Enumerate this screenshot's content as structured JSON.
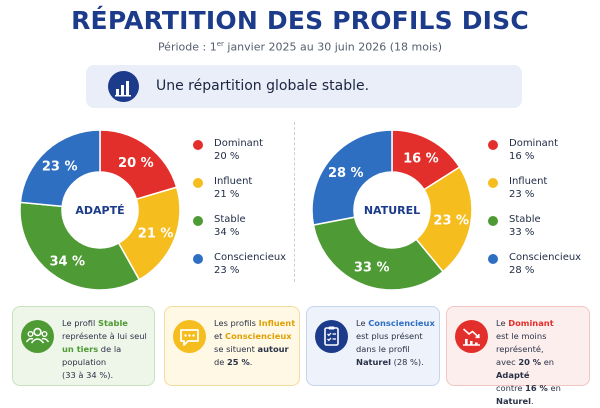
{
  "header": {
    "title": "RÉPARTITION DES PROFILS DISC",
    "subtitle_prefix": "Période : 1",
    "subtitle_sup": "er",
    "subtitle_suffix": " janvier 2025 au 30 juin 2026 (18 mois)"
  },
  "banner": {
    "icon": "bar-chart-icon",
    "text": "Une répartition globale stable."
  },
  "chart_data": [
    {
      "type": "pie",
      "center_label": "ADAPTÉ",
      "categories": [
        "Dominant",
        "Influent",
        "Stable",
        "Consciencieux"
      ],
      "values": [
        20,
        21,
        34,
        23
      ],
      "value_labels": [
        "20 %",
        "21 %",
        "34 %",
        "23 %"
      ],
      "colors": [
        "#e32f2b",
        "#f5bd1e",
        "#4e9a34",
        "#2f6fc2"
      ],
      "legend_placement": "right"
    },
    {
      "type": "pie",
      "center_label": "NATUREL",
      "categories": [
        "Dominant",
        "Influent",
        "Stable",
        "Consciencieux"
      ],
      "values": [
        16,
        23,
        33,
        28
      ],
      "value_labels": [
        "16 %",
        "23 %",
        "33 %",
        "28 %"
      ],
      "colors": [
        "#e32f2b",
        "#f5bd1e",
        "#4e9a34",
        "#2f6fc2"
      ],
      "legend_placement": "right"
    }
  ],
  "cards": [
    {
      "icon": "group-icon",
      "colors": {
        "bg": "#eef6ea",
        "border": "#c9e2bd",
        "icon_bg": "#4e9a34",
        "accent": "#4e9a34"
      },
      "parts": [
        "Le profil ",
        "Stable",
        "représente à lui seul",
        "un tiers",
        " de la population",
        "(33 à 34 %)."
      ]
    },
    {
      "icon": "chat-icon",
      "colors": {
        "bg": "#fff8e4",
        "border": "#f3dd9c",
        "icon_bg": "#f5bd1e",
        "accent": "#e0a106"
      },
      "parts": [
        "Les profils ",
        "Influent",
        "et ",
        "Consciencieux",
        "se situent ",
        "autour",
        "de ",
        "25 %",
        "."
      ]
    },
    {
      "icon": "clipboard-icon",
      "colors": {
        "bg": "#edf2fb",
        "border": "#c6d5ee",
        "icon_bg": "#1d3b8b",
        "accent": "#2f6fc2"
      },
      "parts": [
        "Le ",
        "Consciencieux",
        "est plus présent",
        "dans le profil",
        "Naturel",
        " (28 %)."
      ]
    },
    {
      "icon": "trend-down-icon",
      "colors": {
        "bg": "#fdeeee",
        "border": "#f3c6c4",
        "icon_bg": "#e32f2b",
        "accent": "#e32f2b"
      },
      "parts": [
        "Le ",
        "Dominant",
        "est le moins représenté,",
        "avec ",
        "20 %",
        " en ",
        "Adapté",
        "contre ",
        "16 %",
        " en ",
        "Naturel",
        "."
      ]
    }
  ]
}
